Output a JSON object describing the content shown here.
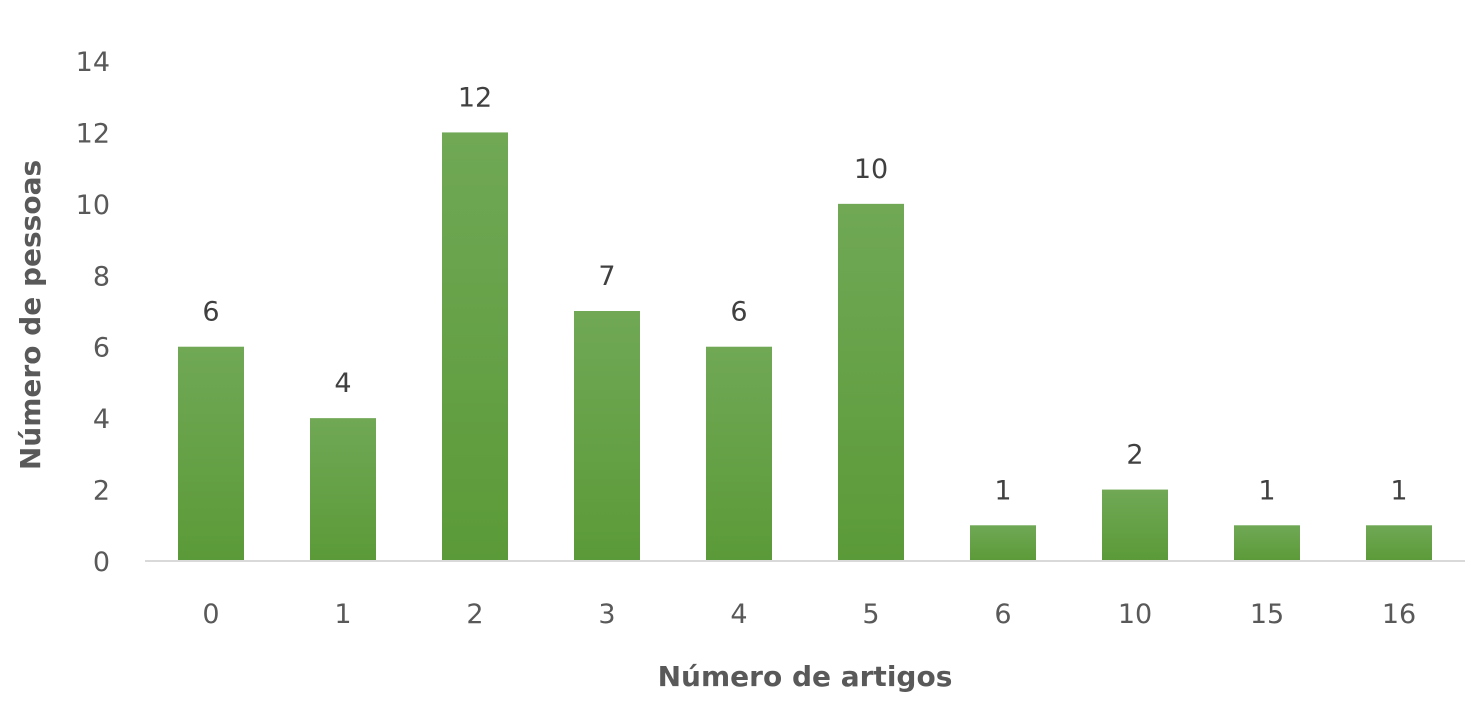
{
  "chart_data": {
    "type": "bar",
    "title": "",
    "xlabel": "Número de artigos",
    "ylabel": "Número de pessoas",
    "categories": [
      "0",
      "1",
      "2",
      "3",
      "4",
      "5",
      "6",
      "10",
      "15",
      "16"
    ],
    "values": [
      6,
      4,
      12,
      7,
      6,
      10,
      1,
      2,
      1,
      1
    ],
    "data_labels": [
      "6",
      "4",
      "12",
      "7",
      "6",
      "10",
      "1",
      "2",
      "1",
      "1"
    ],
    "ylim": [
      0,
      14
    ],
    "y_ticks": [
      "0",
      "2",
      "4",
      "6",
      "8",
      "10",
      "12",
      "14"
    ],
    "grid": false,
    "legend": "none",
    "bar_color": "#5b9a38",
    "bar_color_top": "#70a855"
  }
}
